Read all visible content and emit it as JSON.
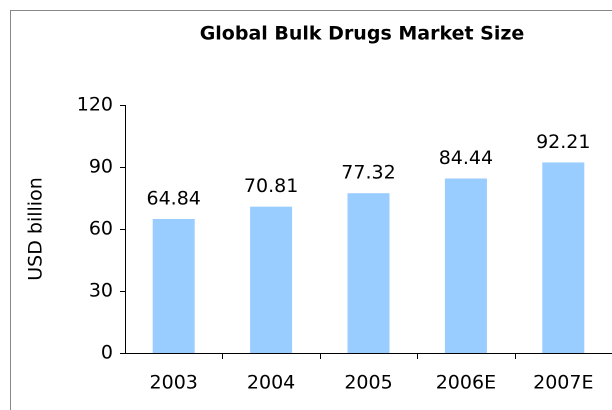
{
  "chart_data": {
    "type": "bar",
    "title": "Global Bulk Drugs Market Size",
    "y_label": "USD billion",
    "categories": [
      "2003",
      "2004",
      "2005",
      "2006E",
      "2007E"
    ],
    "values": [
      64.84,
      70.81,
      77.32,
      84.44,
      92.21
    ],
    "color": "#99ccff",
    "ylim": [
      0,
      120
    ],
    "yticks": [
      0,
      30,
      60,
      90,
      120
    ],
    "grid": false
  }
}
